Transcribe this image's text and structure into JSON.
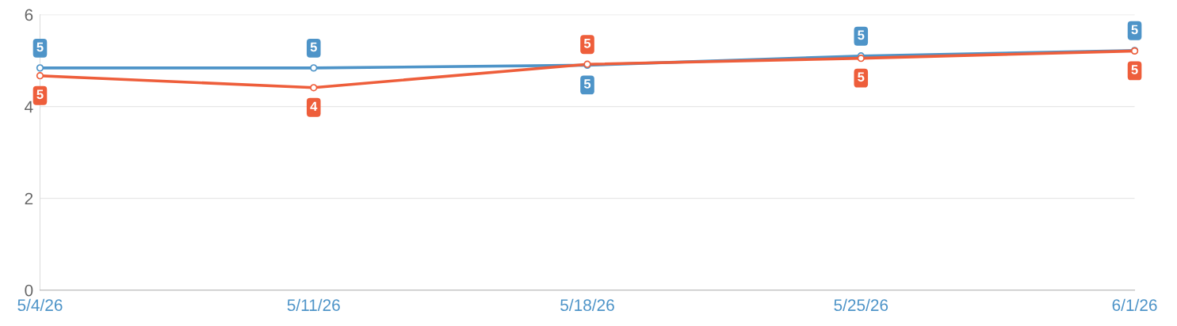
{
  "chart_data": {
    "type": "line",
    "categories": [
      "5/4/26",
      "5/11/26",
      "5/18/26",
      "5/25/26",
      "6/1/26"
    ],
    "series": [
      {
        "color": "#4e94c8",
        "values": [
          4.84,
          4.84,
          4.9,
          5.1,
          5.22
        ],
        "value_labels": [
          "5",
          "5",
          "5",
          "5",
          "5"
        ]
      },
      {
        "color": "#ee5e3b",
        "values": [
          4.67,
          4.41,
          4.92,
          5.05,
          5.21
        ],
        "value_labels": [
          "5",
          "4",
          "5",
          "5",
          "5"
        ]
      }
    ],
    "ylim": [
      0,
      6
    ],
    "yticks": [
      0,
      2,
      4,
      6
    ],
    "grid": "y",
    "marker": "circle",
    "line_style": "solid"
  }
}
